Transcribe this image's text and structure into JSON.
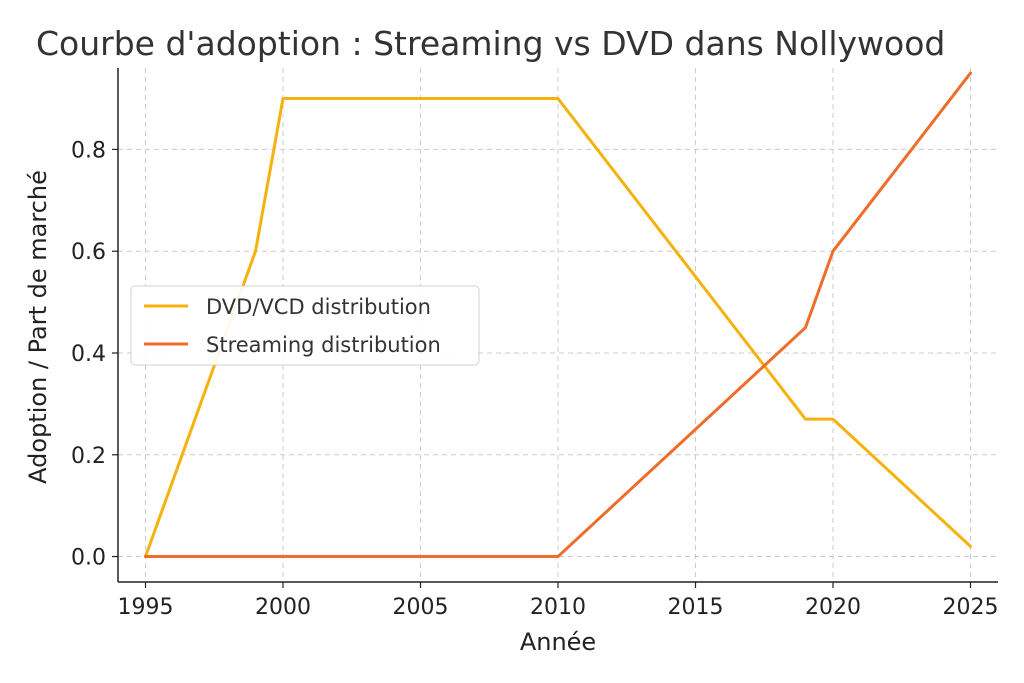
{
  "chart_data": {
    "type": "line",
    "title": "Courbe d'adoption : Streaming vs DVD dans Nollywood",
    "xlabel": "Année",
    "ylabel": "Adoption / Part de marché",
    "xlim": [
      1994,
      2026
    ],
    "ylim": [
      -0.05,
      0.96
    ],
    "xticks": [
      1995,
      2000,
      2005,
      2010,
      2015,
      2020,
      2025
    ],
    "xtick_labels": [
      "1995",
      "2000",
      "2005",
      "2010",
      "2015",
      "2020",
      "2025"
    ],
    "yticks": [
      0.0,
      0.2,
      0.4,
      0.6,
      0.8
    ],
    "ytick_labels": [
      "0.0",
      "0.2",
      "0.4",
      "0.6",
      "0.8"
    ],
    "grid": true,
    "legend_position": "center-left",
    "series": [
      {
        "name": "DVD/VCD distribution",
        "color": "#f5b20f",
        "x": [
          1995,
          1999,
          2000,
          2010,
          2019,
          2020,
          2025
        ],
        "y": [
          0.0,
          0.6,
          0.9,
          0.9,
          0.27,
          0.27,
          0.02
        ]
      },
      {
        "name": "Streaming distribution",
        "color": "#ee6d2a",
        "x": [
          1995,
          2010,
          2019,
          2020,
          2025
        ],
        "y": [
          0.0,
          0.0,
          0.45,
          0.6,
          0.95
        ]
      }
    ]
  }
}
